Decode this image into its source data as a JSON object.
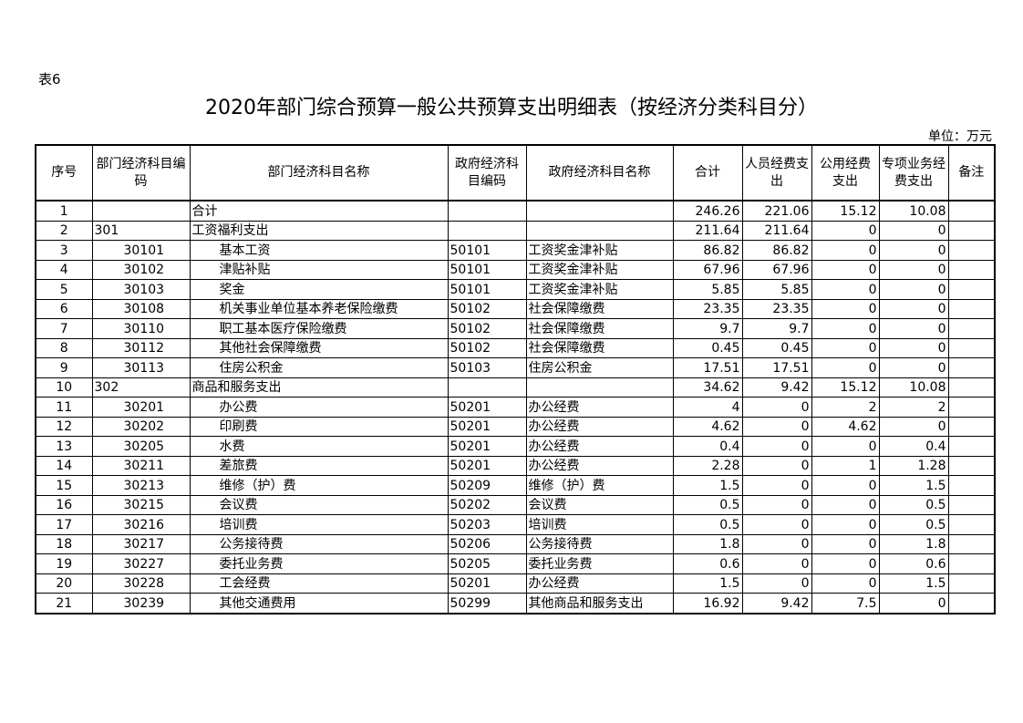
{
  "table_label": "表6",
  "title": "2020年部门综合预算一般公共预算支出明细表（按经济分类科目分）",
  "unit": "单位：万元",
  "headers": [
    "序号",
    "部门经济科目编码",
    "部门经济科目名称",
    "政府经济科目编码",
    "政府经济科目名称",
    "合计",
    "人员经费支出",
    "公用经费支出",
    "专项业务经费支出",
    "备注"
  ],
  "rows": [
    {
      "no": "1",
      "code": "",
      "name": "合计",
      "gov_code": "",
      "gov_name": "",
      "total": "246.26",
      "personnel": "221.06",
      "public": "15.12",
      "special": "10.08",
      "note": "",
      "level": 0
    },
    {
      "no": "2",
      "code": "301",
      "name": "工资福利支出",
      "gov_code": "",
      "gov_name": "",
      "total": "211.64",
      "personnel": "211.64",
      "public": "0",
      "special": "0",
      "note": "",
      "level": 1
    },
    {
      "no": "3",
      "code": "30101",
      "name": "基本工资",
      "gov_code": "50101",
      "gov_name": "工资奖金津补贴",
      "total": "86.82",
      "personnel": "86.82",
      "public": "0",
      "special": "0",
      "note": "",
      "level": 2
    },
    {
      "no": "4",
      "code": "30102",
      "name": "津贴补贴",
      "gov_code": "50101",
      "gov_name": "工资奖金津补贴",
      "total": "67.96",
      "personnel": "67.96",
      "public": "0",
      "special": "0",
      "note": "",
      "level": 2
    },
    {
      "no": "5",
      "code": "30103",
      "name": "奖金",
      "gov_code": "50101",
      "gov_name": "工资奖金津补贴",
      "total": "5.85",
      "personnel": "5.85",
      "public": "0",
      "special": "0",
      "note": "",
      "level": 2
    },
    {
      "no": "6",
      "code": "30108",
      "name": "机关事业单位基本养老保险缴费",
      "gov_code": "50102",
      "gov_name": "社会保障缴费",
      "total": "23.35",
      "personnel": "23.35",
      "public": "0",
      "special": "0",
      "note": "",
      "level": 2
    },
    {
      "no": "7",
      "code": "30110",
      "name": "职工基本医疗保险缴费",
      "gov_code": "50102",
      "gov_name": "社会保障缴费",
      "total": "9.7",
      "personnel": "9.7",
      "public": "0",
      "special": "0",
      "note": "",
      "level": 2
    },
    {
      "no": "8",
      "code": "30112",
      "name": "其他社会保障缴费",
      "gov_code": "50102",
      "gov_name": "社会保障缴费",
      "total": "0.45",
      "personnel": "0.45",
      "public": "0",
      "special": "0",
      "note": "",
      "level": 2
    },
    {
      "no": "9",
      "code": "30113",
      "name": "住房公积金",
      "gov_code": "50103",
      "gov_name": "住房公积金",
      "total": "17.51",
      "personnel": "17.51",
      "public": "0",
      "special": "0",
      "note": "",
      "level": 2
    },
    {
      "no": "10",
      "code": "302",
      "name": "商品和服务支出",
      "gov_code": "",
      "gov_name": "",
      "total": "34.62",
      "personnel": "9.42",
      "public": "15.12",
      "special": "10.08",
      "note": "",
      "level": 1
    },
    {
      "no": "11",
      "code": "30201",
      "name": "办公费",
      "gov_code": "50201",
      "gov_name": "办公经费",
      "total": "4",
      "personnel": "0",
      "public": "2",
      "special": "2",
      "note": "",
      "level": 2
    },
    {
      "no": "12",
      "code": "30202",
      "name": "印刷费",
      "gov_code": "50201",
      "gov_name": "办公经费",
      "total": "4.62",
      "personnel": "0",
      "public": "4.62",
      "special": "0",
      "note": "",
      "level": 2
    },
    {
      "no": "13",
      "code": "30205",
      "name": "水费",
      "gov_code": "50201",
      "gov_name": "办公经费",
      "total": "0.4",
      "personnel": "0",
      "public": "0",
      "special": "0.4",
      "note": "",
      "level": 2
    },
    {
      "no": "14",
      "code": "30211",
      "name": "差旅费",
      "gov_code": "50201",
      "gov_name": "办公经费",
      "total": "2.28",
      "personnel": "0",
      "public": "1",
      "special": "1.28",
      "note": "",
      "level": 2
    },
    {
      "no": "15",
      "code": "30213",
      "name": "维修（护）费",
      "gov_code": "50209",
      "gov_name": "维修（护）费",
      "total": "1.5",
      "personnel": "0",
      "public": "0",
      "special": "1.5",
      "note": "",
      "level": 2
    },
    {
      "no": "16",
      "code": "30215",
      "name": "会议费",
      "gov_code": "50202",
      "gov_name": "会议费",
      "total": "0.5",
      "personnel": "0",
      "public": "0",
      "special": "0.5",
      "note": "",
      "level": 2
    },
    {
      "no": "17",
      "code": "30216",
      "name": "培训费",
      "gov_code": "50203",
      "gov_name": "培训费",
      "total": "0.5",
      "personnel": "0",
      "public": "0",
      "special": "0.5",
      "note": "",
      "level": 2
    },
    {
      "no": "18",
      "code": "30217",
      "name": "公务接待费",
      "gov_code": "50206",
      "gov_name": "公务接待费",
      "total": "1.8",
      "personnel": "0",
      "public": "0",
      "special": "1.8",
      "note": "",
      "level": 2
    },
    {
      "no": "19",
      "code": "30227",
      "name": "委托业务费",
      "gov_code": "50205",
      "gov_name": "委托业务费",
      "total": "0.6",
      "personnel": "0",
      "public": "0",
      "special": "0.6",
      "note": "",
      "level": 2
    },
    {
      "no": "20",
      "code": "30228",
      "name": "工会经费",
      "gov_code": "50201",
      "gov_name": "办公经费",
      "total": "1.5",
      "personnel": "0",
      "public": "0",
      "special": "1.5",
      "note": "",
      "level": 2
    },
    {
      "no": "21",
      "code": "30239",
      "name": "其他交通费用",
      "gov_code": "50299",
      "gov_name": "其他商品和服务支出",
      "total": "16.92",
      "personnel": "9.42",
      "public": "7.5",
      "special": "0",
      "note": "",
      "level": 2
    }
  ]
}
